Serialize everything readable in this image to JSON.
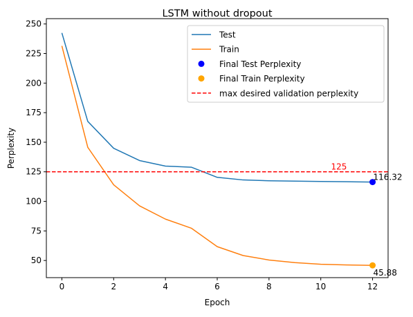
{
  "chart_data": {
    "type": "line",
    "title": "LSTM without dropout",
    "xlabel": "Epoch",
    "ylabel": "Perplexity",
    "xlim": [
      -0.6,
      12.6
    ],
    "ylim": [
      35.5,
      254.5
    ],
    "xticks": [
      0,
      2,
      4,
      6,
      8,
      10,
      12
    ],
    "yticks": [
      50,
      75,
      100,
      125,
      150,
      175,
      200,
      225,
      250
    ],
    "grid": false,
    "legend_position": "top-right",
    "x": [
      0,
      1,
      2,
      3,
      4,
      5,
      6,
      7,
      8,
      9,
      10,
      11,
      12
    ],
    "series": [
      {
        "name": "Test",
        "color": "#1f77b4",
        "values": [
          242.4,
          167.6,
          144.9,
          134.5,
          129.8,
          128.9,
          120.3,
          118.1,
          117.4,
          117.1,
          116.8,
          116.6,
          116.32
        ]
      },
      {
        "name": "Train",
        "color": "#ff7f0e",
        "values": [
          231.5,
          145.7,
          114.0,
          96.2,
          85.0,
          77.3,
          61.7,
          54.2,
          50.4,
          48.2,
          46.8,
          46.2,
          45.88
        ]
      }
    ],
    "points": [
      {
        "name": "Final Test Perplexity",
        "x": 12,
        "y": 116.32,
        "color": "#0000ff",
        "label": "116.32"
      },
      {
        "name": "Final Train Perplexity",
        "x": 12,
        "y": 45.88,
        "color": "#ffa500",
        "label": "45.88"
      }
    ],
    "hline": {
      "name": "max desired validation perplexity",
      "y": 125,
      "color": "#ff0000",
      "style": "dashed",
      "label": "125"
    }
  }
}
